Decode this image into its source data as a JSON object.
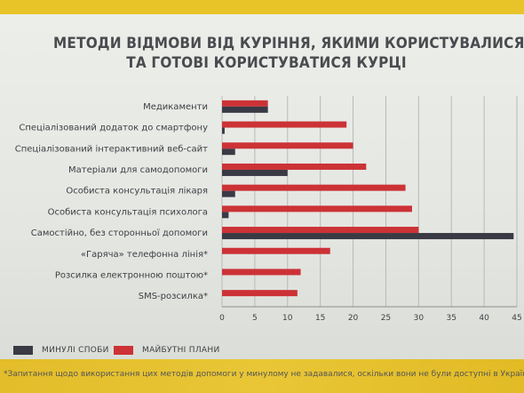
{
  "title_lines": [
    "МЕТОДИ ВІДМОВИ ВІД КУРІННЯ, ЯКИМИ КОРИСТУВАЛИСЯ",
    "ТА ГОТОВІ КОРИСТУВАТИСЯ КУРЦІ"
  ],
  "legend": {
    "past": "МИНУЛІ СПОБИ",
    "future": "МАЙБУТНІ ПЛАНИ"
  },
  "footnote": "*Запитання щодо використання цих методів допомоги у минулому не задавалися, оскільки вони не були доступні в Україні.",
  "colors": {
    "past": "#3a3a45",
    "future": "#cc3236",
    "grid": "#b8bab7",
    "text": "#3d3e42"
  },
  "chart_data": {
    "type": "bar",
    "orientation": "horizontal",
    "categories": [
      "Медикаменти",
      "Спеціалізований додаток до смартфону",
      "Спеціалізований інтерактивний веб-сайт",
      "Матеріали для самодопомоги",
      "Особиста консультація лікаря",
      "Особиста консультація психолога",
      "Самостійно, без сторонньої допомоги",
      "«Гаряча» телефонна лінія*",
      "Розсилка електронною поштою*",
      "SMS-розсилка*"
    ],
    "series": [
      {
        "name": "МАЙБУТНІ ПЛАНИ",
        "key": "future",
        "values": [
          7,
          19,
          20,
          22,
          28,
          29,
          30,
          16.5,
          12,
          11.5
        ]
      },
      {
        "name": "МИНУЛІ СПОБИ",
        "key": "past",
        "values": [
          7,
          0.4,
          2,
          10,
          2,
          1,
          44.5,
          null,
          null,
          null
        ]
      }
    ],
    "x_ticks": [
      0,
      5,
      10,
      15,
      20,
      25,
      30,
      35,
      40,
      45
    ],
    "xlim": [
      0,
      45
    ],
    "grid": true,
    "legend_position": "bottom"
  }
}
